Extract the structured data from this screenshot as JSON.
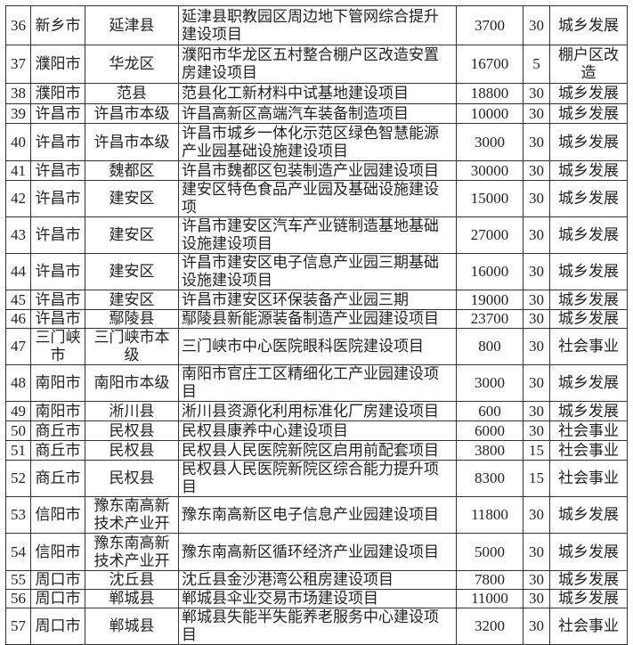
{
  "table": {
    "rows": [
      {
        "no": "36",
        "city": "新乡市",
        "county": "延津县",
        "project": "延津县职教园区周边地下管网综合提升建设项目",
        "amount": "3700",
        "years": "30",
        "category": "城乡发展"
      },
      {
        "no": "37",
        "city": "濮阳市",
        "county": "华龙区",
        "project": "濮阳市华龙区五村整合棚户区改造安置房建设项目",
        "amount": "16700",
        "years": "5",
        "category": "棚户区改造"
      },
      {
        "no": "38",
        "city": "濮阳市",
        "county": "范县",
        "project": "范县化工新材料中试基地建设项目",
        "amount": "18800",
        "years": "30",
        "category": "城乡发展"
      },
      {
        "no": "39",
        "city": "许昌市",
        "county": "许昌市本级",
        "project": "许昌高新区高端汽车装备制造项目",
        "amount": "10000",
        "years": "30",
        "category": "城乡发展"
      },
      {
        "no": "40",
        "city": "许昌市",
        "county": "许昌市本级",
        "project": "许昌市城乡一体化示范区绿色智慧能源产业园基础设施建设项目",
        "amount": "3000",
        "years": "30",
        "category": "城乡发展"
      },
      {
        "no": "41",
        "city": "许昌市",
        "county": "魏都区",
        "project": "许昌市魏都区包装制造产业园建设项目",
        "amount": "30000",
        "years": "30",
        "category": "城乡发展"
      },
      {
        "no": "42",
        "city": "许昌市",
        "county": "建安区",
        "project": "建安区特色食品产业园及基础设施建设项",
        "amount": "15000",
        "years": "30",
        "category": "城乡发展"
      },
      {
        "no": "43",
        "city": "许昌市",
        "county": "建安区",
        "project": "许昌市建安区汽车产业链制造基地基础设施建设项目",
        "amount": "27000",
        "years": "30",
        "category": "城乡发展"
      },
      {
        "no": "44",
        "city": "许昌市",
        "county": "建安区",
        "project": "许昌市建安区电子信息产业园三期基础设施建设项目",
        "amount": "16000",
        "years": "30",
        "category": "城乡发展"
      },
      {
        "no": "45",
        "city": "许昌市",
        "county": "建安区",
        "project": "许昌市建安区环保装备产业园三期",
        "amount": "19000",
        "years": "30",
        "category": "城乡发展"
      },
      {
        "no": "46",
        "city": "许昌市",
        "county": "鄢陵县",
        "project": "鄢陵县新能源装备制造产业园建设项目",
        "amount": "23700",
        "years": "30",
        "category": "城乡发展"
      },
      {
        "no": "47",
        "city": "三门峡市",
        "county": "三门峡市本级",
        "project": "三门峡市中心医院眼科医院建设项目",
        "amount": "800",
        "years": "30",
        "category": "社会事业"
      },
      {
        "no": "48",
        "city": "南阳市",
        "county": "南阳市本级",
        "project": "南阳市官庄工区精细化工产业园建设项目",
        "amount": "3000",
        "years": "30",
        "category": "城乡发展"
      },
      {
        "no": "49",
        "city": "南阳市",
        "county": "淅川县",
        "project": "淅川县资源化利用标准化厂房建设项目",
        "amount": "600",
        "years": "30",
        "category": "城乡发展"
      },
      {
        "no": "50",
        "city": "商丘市",
        "county": "民权县",
        "project": "民权县康养中心建设项目",
        "amount": "6000",
        "years": "30",
        "category": "社会事业"
      },
      {
        "no": "51",
        "city": "商丘市",
        "county": "民权县",
        "project": "民权县人民医院新院区启用前配套项目",
        "amount": "3800",
        "years": "15",
        "category": "社会事业"
      },
      {
        "no": "52",
        "city": "商丘市",
        "county": "民权县",
        "project": "民权县人民医院新院区综合能力提升项目",
        "amount": "8300",
        "years": "15",
        "category": "社会事业"
      },
      {
        "no": "53",
        "city": "信阳市",
        "county": "豫东南高新技术产业开",
        "project": "豫东南高新区电子信息产业园建设项目",
        "amount": "11800",
        "years": "30",
        "category": "城乡发展"
      },
      {
        "no": "54",
        "city": "信阳市",
        "county": "豫东南高新技术产业开",
        "project": "豫东南高新区循环经济产业园建设项目",
        "amount": "5000",
        "years": "30",
        "category": "城乡发展"
      },
      {
        "no": "55",
        "city": "周口市",
        "county": "沈丘县",
        "project": "沈丘县金沙港湾公租房建设项目",
        "amount": "7800",
        "years": "30",
        "category": "城乡发展"
      },
      {
        "no": "56",
        "city": "周口市",
        "county": "郸城县",
        "project": "郸城县伞业交易市场建设项目",
        "amount": "11000",
        "years": "30",
        "category": "城乡发展"
      },
      {
        "no": "57",
        "city": "周口市",
        "county": "郸城县",
        "project": "郸城县失能半失能养老服务中心建设项目",
        "amount": "3200",
        "years": "30",
        "category": "社会事业"
      }
    ]
  }
}
